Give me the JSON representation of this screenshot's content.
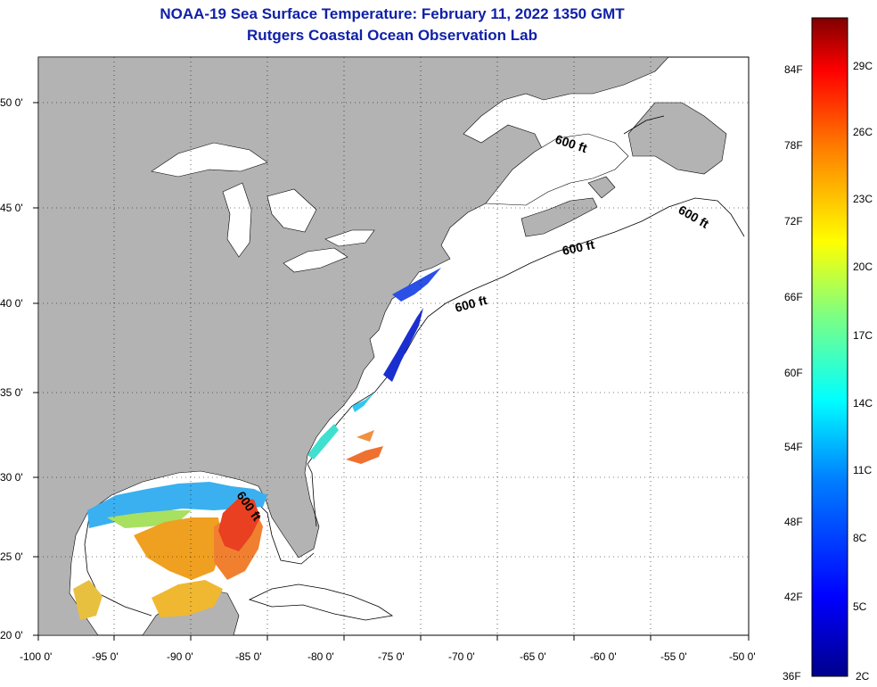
{
  "title": "NOAA-19 Sea Surface Temperature:  February 11, 2022 1350 GMT",
  "subtitle": "Rutgers Coastal Ocean Observation Lab",
  "map": {
    "lon_range": [
      -100,
      -50
    ],
    "lat_range": [
      20,
      52
    ],
    "lon_ticks": [
      "-100 0'",
      "-95 0'",
      "-90 0'",
      "-85 0'",
      "-80 0'",
      "-75 0'",
      "-70 0'",
      "-65 0'",
      "-60 0'",
      "-55 0'",
      "-50 0'"
    ],
    "lat_ticks": [
      "20 0'",
      "25 0'",
      "30 0'",
      "35 0'",
      "40 0'",
      "45 0'",
      "50 0'"
    ],
    "contour_label": "600 ft",
    "land_color": "#b3b3b3",
    "water_color": "#ffffff",
    "grid": "dotted"
  },
  "colorbar": {
    "fahrenheit_labels": [
      "84F",
      "78F",
      "72F",
      "66F",
      "60F",
      "54F",
      "48F",
      "42F",
      "36F"
    ],
    "celsius_labels": [
      "29C",
      "26C",
      "23C",
      "20C",
      "17C",
      "14C",
      "11C",
      "8C",
      "5C",
      "2C"
    ],
    "colors": [
      "#00008b",
      "#0000ff",
      "#0080ff",
      "#00ffff",
      "#80ff80",
      "#ffff00",
      "#ff8000",
      "#ff0000",
      "#800000"
    ]
  }
}
